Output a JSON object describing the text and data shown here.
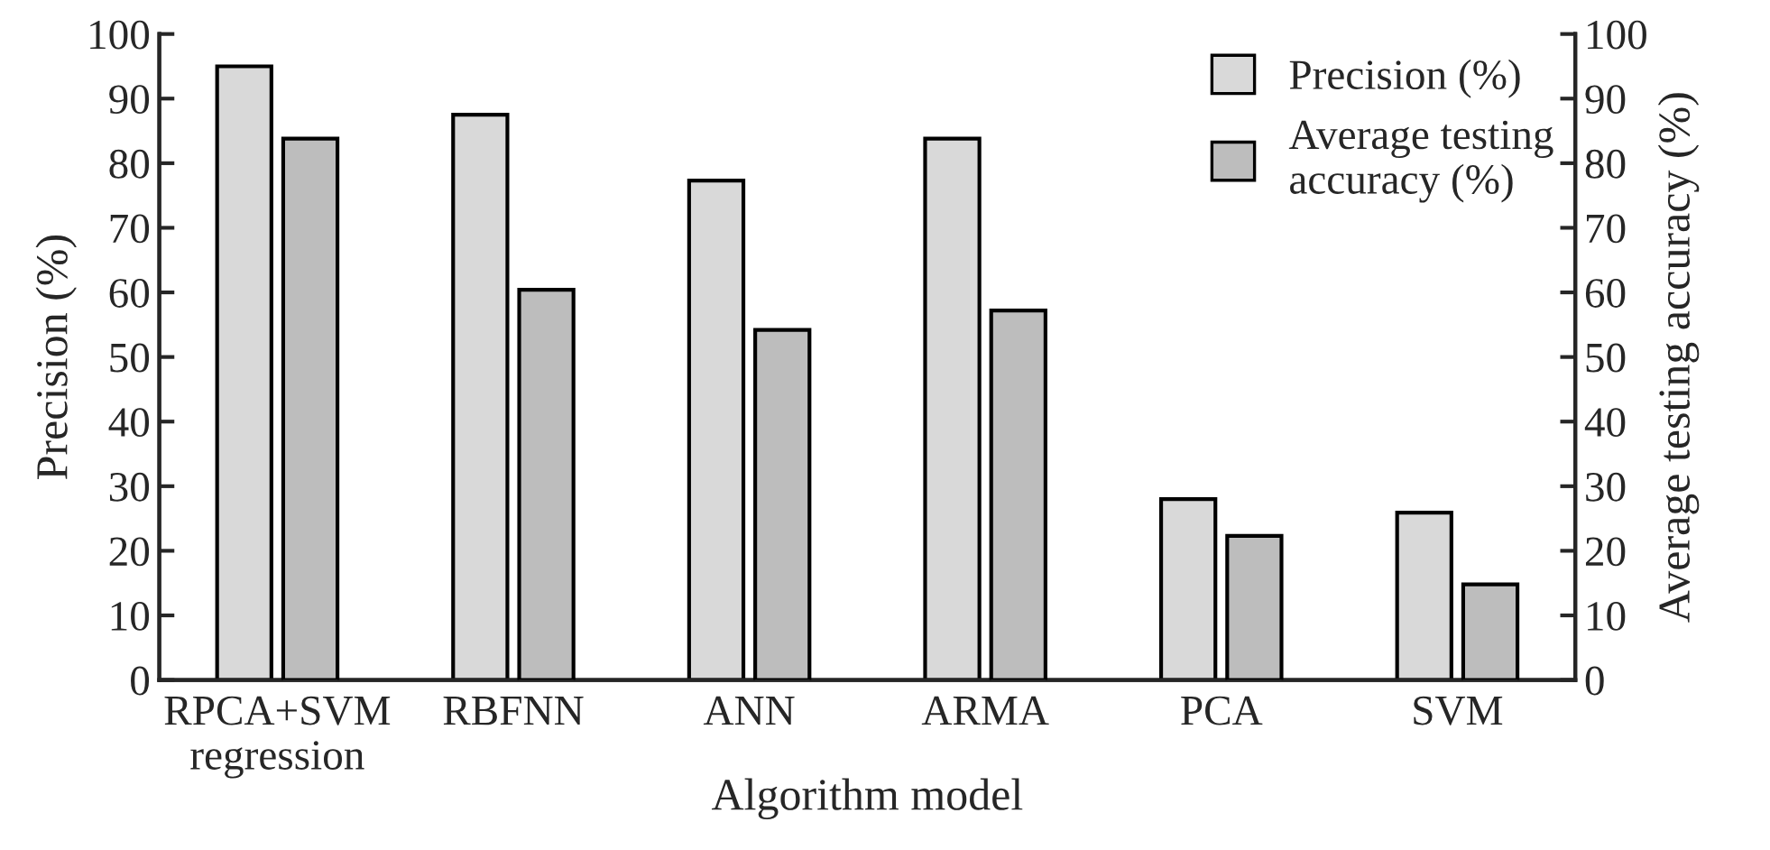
{
  "chart_data": {
    "type": "bar",
    "categories": [
      "RPCA+SVM\nregression",
      "RBFNN",
      "ANN",
      "ARMA",
      "PCA",
      "SVM"
    ],
    "series": [
      {
        "name": "Precision (%)",
        "color": "#d9d9d9",
        "values": [
          95,
          87.5,
          77.3,
          83.8,
          28,
          25.9
        ]
      },
      {
        "name": "Average testing\naccuracy (%)",
        "color": "#bdbdbd",
        "values": [
          83.8,
          60.4,
          54.2,
          57.2,
          22.3,
          14.8
        ],
        "axis": "y2"
      }
    ],
    "xlabel": "Algorithm model",
    "ylabel": "Precision (%)",
    "y2label": "Average testing accuracy (%)",
    "ylim": [
      0,
      100
    ],
    "yticks": [
      0,
      10,
      20,
      30,
      40,
      50,
      60,
      70,
      80,
      90,
      100
    ],
    "y2lim": [
      0,
      100
    ],
    "y2ticks": [
      0,
      10,
      20,
      30,
      40,
      50,
      60,
      70,
      80,
      90,
      100
    ],
    "legend": "top right",
    "grid": false
  }
}
